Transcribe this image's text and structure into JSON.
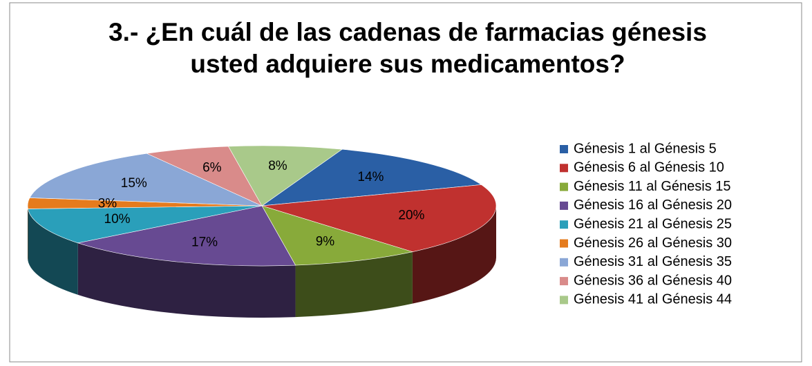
{
  "chart_data": {
    "type": "pie",
    "title": "3.- ¿En cuál de las cadenas de farmacias génesis usted adquiere sus medicamentos?",
    "categories": [
      "Génesis 1 al Génesis 5",
      "Génesis 6 al Génesis 10",
      "Génesis 11 al Génesis 15",
      "Génesis 16 al Génesis 20",
      "Génesis 21 al Génesis 25",
      "Génesis 26 al Génesis 30",
      "Génesis 31 al Génesis 35",
      "Génesis 36 al Génesis 40",
      "Génesis 41 al Génesis 44"
    ],
    "values": [
      14,
      20,
      9,
      17,
      10,
      3,
      15,
      6,
      8
    ],
    "value_labels": [
      "14%",
      "20%",
      "9%",
      "17%",
      "10%",
      "3%",
      "15%",
      "6%",
      "8%"
    ],
    "colors": [
      "#2a5fa5",
      "#c0312f",
      "#88aa3a",
      "#674a92",
      "#2a9fba",
      "#e57b1d",
      "#8aa7d6",
      "#d98b8a",
      "#a9c98a"
    ],
    "legend": "right"
  }
}
